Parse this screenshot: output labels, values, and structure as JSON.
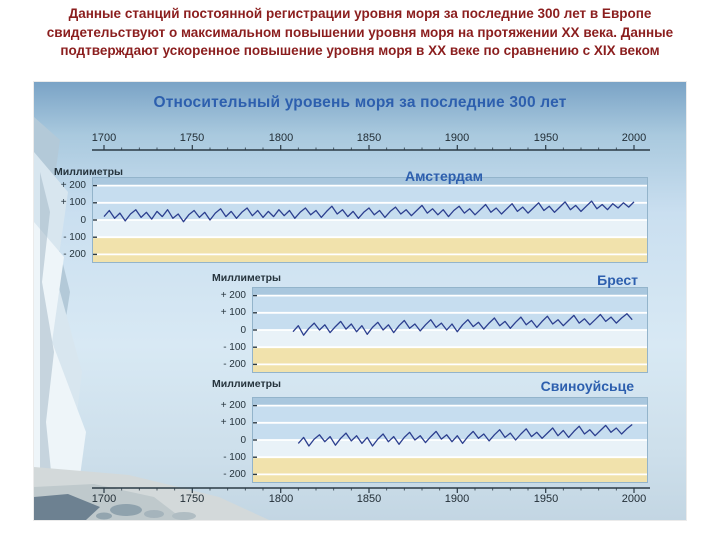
{
  "slide": {
    "headline": "Данные станций постоянной регистрации уровня моря за последние 300 лет в Европе свидетельствуют о максимальном повышении уровня моря на протяжении XX века. Данные подтверждают ускоренное повышение уровня моря в XX веке по сравнению с XIX веком"
  },
  "figure": {
    "title": "Относительный уровень моря за последние 300 лет",
    "y_axis_label": "Миллиметры"
  },
  "mm_tick_labels": [
    "+ 200",
    "+ 100",
    "0",
    "- 100",
    "- 200"
  ],
  "stations": [
    "Амстердам",
    "Брест",
    "Свиноуйсьце"
  ],
  "colors": {
    "headline_text": "#8b1e1e",
    "figure_title": "#2d5fae",
    "station_label": "#2d5fae",
    "line": "#2c3f8f",
    "band_blue": "#c6ddef",
    "band_cream": "#f1e2ac"
  },
  "chart_data": {
    "type": "line",
    "title": "Относительный уровень моря за последние 300 лет",
    "xlabel": "",
    "ylabel": "Миллиметры",
    "x_range": [
      1700,
      2000
    ],
    "x_ticks": [
      1700,
      1750,
      1800,
      1850,
      1900,
      1950,
      2000
    ],
    "y_ticks": [
      200,
      100,
      0,
      -100,
      -200
    ],
    "ylim": [
      -250,
      250
    ],
    "grid": "horizontal",
    "legend": "station names above each strip chart",
    "units": "mm relative sea level",
    "series": [
      {
        "name": "Амстердам",
        "start_year": 1700,
        "step": 3,
        "values": [
          20,
          55,
          10,
          40,
          -5,
          35,
          60,
          15,
          45,
          5,
          50,
          20,
          60,
          10,
          35,
          -10,
          30,
          55,
          15,
          45,
          0,
          40,
          65,
          20,
          50,
          10,
          45,
          70,
          25,
          55,
          15,
          50,
          20,
          60,
          25,
          55,
          10,
          45,
          70,
          30,
          55,
          15,
          50,
          80,
          35,
          60,
          20,
          50,
          10,
          45,
          70,
          30,
          55,
          15,
          50,
          75,
          35,
          60,
          25,
          55,
          85,
          40,
          65,
          30,
          60,
          20,
          55,
          80,
          40,
          65,
          30,
          60,
          90,
          45,
          70,
          35,
          65,
          95,
          50,
          75,
          40,
          70,
          100,
          55,
          80,
          45,
          75,
          105,
          60,
          85,
          50,
          80,
          110,
          65,
          90,
          60,
          95,
          70,
          100,
          75,
          105
        ]
      },
      {
        "name": "Брест",
        "start_year": 1807,
        "step": 3,
        "values": [
          -10,
          25,
          -30,
          10,
          40,
          0,
          30,
          -15,
          20,
          50,
          5,
          35,
          -10,
          25,
          -25,
          15,
          45,
          0,
          30,
          -15,
          25,
          55,
          10,
          35,
          -5,
          30,
          60,
          15,
          40,
          0,
          35,
          -10,
          30,
          60,
          20,
          45,
          5,
          40,
          70,
          25,
          50,
          10,
          45,
          75,
          30,
          55,
          15,
          50,
          80,
          35,
          60,
          25,
          55,
          85,
          40,
          65,
          30,
          60,
          90,
          50,
          75,
          40,
          70,
          95,
          60
        ]
      },
      {
        "name": "Свиноуйсьце",
        "start_year": 1810,
        "step": 3,
        "values": [
          -20,
          15,
          -35,
          5,
          30,
          -10,
          20,
          -30,
          10,
          40,
          -5,
          25,
          -20,
          15,
          -35,
          5,
          35,
          -10,
          20,
          -25,
          15,
          45,
          0,
          25,
          -15,
          20,
          50,
          5,
          30,
          -10,
          25,
          -20,
          20,
          50,
          10,
          35,
          -5,
          30,
          60,
          15,
          40,
          0,
          35,
          65,
          20,
          45,
          10,
          40,
          70,
          25,
          55,
          15,
          50,
          80,
          35,
          60,
          25,
          55,
          85,
          45,
          70,
          35,
          65,
          90
        ]
      }
    ]
  }
}
